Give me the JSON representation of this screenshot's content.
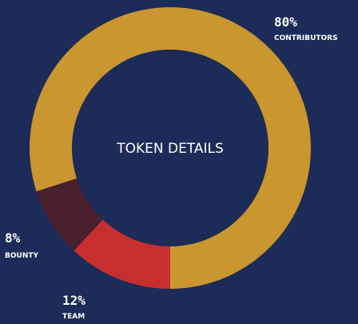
{
  "chart_data": {
    "type": "donut",
    "title": "TOKEN DETAILS",
    "categories": [
      "CONTRIBUTORS",
      "BOUNTY",
      "TEAM"
    ],
    "values": [
      80,
      8,
      12
    ],
    "value_labels": [
      "80%",
      "8%",
      "12%"
    ],
    "colors": [
      "#c9962f",
      "#4a1f2e",
      "#c62f2e"
    ]
  }
}
